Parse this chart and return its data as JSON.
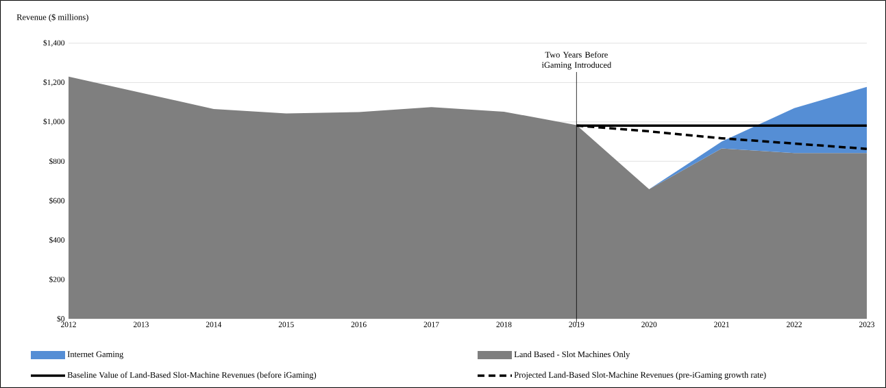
{
  "chart_data": {
    "type": "area",
    "ylabel": "Revenue ($ millions)",
    "stacked": true,
    "x": [
      2012,
      2013,
      2014,
      2015,
      2016,
      2017,
      2018,
      2019,
      2020,
      2021,
      2022,
      2023
    ],
    "series": [
      {
        "name": "Land Based - Slot Machines Only",
        "color": "#7f7f7f",
        "values": [
          1230,
          1148,
          1066,
          1043,
          1050,
          1075,
          1052,
          984,
          658,
          865,
          842,
          842
        ]
      },
      {
        "name": "Internet Gaming",
        "color": "#558ed5",
        "values": [
          null,
          null,
          null,
          null,
          null,
          null,
          null,
          null,
          0,
          35,
          228,
          336
        ]
      },
      {
        "name": "Baseline Value of Land-Based Slot-Machine Revenues (before iGaming)",
        "type": "line",
        "color": "#000000",
        "line_style": "solid",
        "values": [
          null,
          null,
          null,
          null,
          null,
          null,
          null,
          981,
          981,
          981,
          981,
          981
        ]
      },
      {
        "name": "Projected Land-Based Slot-Machine Revenues (pre-iGaming growth rate)",
        "type": "line",
        "color": "#000000",
        "line_style": "dashed",
        "values": [
          null,
          null,
          null,
          null,
          null,
          null,
          null,
          981,
          952,
          917,
          890,
          863
        ]
      }
    ],
    "xlim": [
      2012,
      2023
    ],
    "xticks": [
      2012,
      2013,
      2014,
      2015,
      2016,
      2017,
      2018,
      2019,
      2020,
      2021,
      2022,
      2023
    ],
    "ylim": [
      0,
      1400
    ],
    "yticks": [
      {
        "value": 0,
        "label": "$0"
      },
      {
        "value": 200,
        "label": "$200"
      },
      {
        "value": 400,
        "label": "$400"
      },
      {
        "value": 600,
        "label": "$600"
      },
      {
        "value": 800,
        "label": "$800"
      },
      {
        "value": 1000,
        "label": "$1,000"
      },
      {
        "value": 1200,
        "label": "$1,200"
      },
      {
        "value": 1400,
        "label": "$1,400"
      }
    ],
    "grid": "y",
    "legend": "bottom",
    "ref_lines": [
      {
        "axis": "x",
        "value": 2019,
        "label": "Two Years Before iGaming Introduced"
      }
    ]
  }
}
